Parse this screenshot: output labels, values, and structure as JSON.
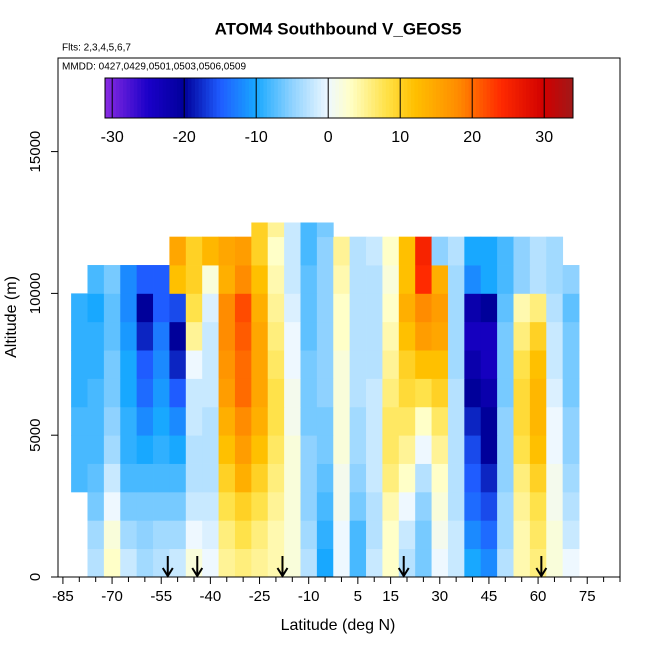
{
  "chart_data": {
    "type": "heatmap",
    "title": "ATOM4 Southbound V_GEOS5",
    "subtitle": "Flts: 2,3,4,5,6,7",
    "annotation": "MMDD: 0427,0429,0501,0503,0506,0509",
    "xlabel": "Latitude (deg N)",
    "ylabel": "Altitude (m)",
    "xlim": [
      -86.5,
      85
    ],
    "ylim": [
      0,
      18300
    ],
    "xticks": [
      -85,
      -70,
      -55,
      -40,
      -25,
      -10,
      5,
      15,
      30,
      45,
      60,
      75
    ],
    "xminorticks": [
      -80,
      -75,
      -65,
      -60,
      -50,
      -45,
      -35,
      -30,
      -20,
      -15,
      -5,
      0,
      10,
      20,
      25,
      35,
      40,
      50,
      55,
      65,
      70,
      80,
      85
    ],
    "yticks": [
      0,
      5000,
      10000,
      15000
    ],
    "xbins": [
      -82.5,
      -77.5,
      -72.5,
      -67.5,
      -62.5,
      -57.5,
      -52.5,
      -47.5,
      -42.5,
      -37.5,
      -32.5,
      -27.5,
      -22.5,
      -17.5,
      -12.5,
      -7.5,
      -2.5,
      2.5,
      7.5,
      12.5,
      17.5,
      22.5,
      27.5,
      32.5,
      37.5,
      42.5,
      47.5,
      52.5,
      57.5,
      62.5,
      67.5,
      72.5
    ],
    "ybins": [
      0,
      1000,
      2000,
      3000,
      4000,
      5000,
      6000,
      7000,
      8000,
      9000,
      10000,
      11000,
      12000,
      12500
    ],
    "values": [
      [
        null,
        -3,
        3,
        -2,
        -4,
        -3,
        -2,
        2,
        0,
        5,
        6,
        5,
        4,
        2,
        -3,
        -10,
        0,
        -8,
        -2,
        3,
        -3,
        -6,
        0,
        -2,
        -10,
        -12,
        -3,
        4,
        6,
        2,
        0
      ],
      [
        null,
        -4,
        2,
        -4,
        -5,
        -4,
        -4,
        0,
        -1,
        6,
        8,
        6,
        4,
        2,
        -4,
        -9,
        0,
        -8,
        -3,
        3,
        -2,
        -6,
        1,
        -2,
        -12,
        -14,
        -4,
        4,
        7,
        2,
        -2
      ],
      [
        null,
        -6,
        0,
        -6,
        -6,
        -6,
        -6,
        -2,
        -2,
        8,
        10,
        8,
        5,
        2,
        -5,
        -8,
        1,
        -6,
        -3,
        4,
        0,
        -5,
        2,
        -3,
        -14,
        -16,
        -4,
        5,
        8,
        1,
        -3
      ],
      [
        -8,
        -7,
        -2,
        -8,
        -8,
        -8,
        -8,
        -3,
        -3,
        10,
        14,
        10,
        6,
        2,
        -5,
        -7,
        1,
        -5,
        -2,
        6,
        3,
        -3,
        3,
        -3,
        -15,
        -18,
        -5,
        6,
        10,
        1,
        -4
      ],
      [
        -8,
        -8,
        -4,
        -9,
        -10,
        -9,
        -10,
        -3,
        -3,
        12,
        16,
        12,
        7,
        2,
        -5,
        -6,
        2,
        -4,
        -2,
        7,
        5,
        0,
        5,
        -3,
        -16,
        -20,
        -5,
        8,
        12,
        0,
        -5
      ],
      [
        -8,
        -8,
        -5,
        -9,
        -12,
        -10,
        -12,
        -2,
        -3,
        14,
        18,
        14,
        8,
        1,
        -6,
        -6,
        2,
        -4,
        -2,
        7,
        7,
        3,
        7,
        -3,
        -18,
        -20,
        -5,
        9,
        13,
        0,
        -5
      ],
      [
        -9,
        -8,
        -6,
        -10,
        -14,
        -11,
        -15,
        -2,
        -2,
        16,
        20,
        15,
        8,
        1,
        -6,
        -5,
        2,
        -3,
        -2,
        6,
        9,
        8,
        10,
        -3,
        -20,
        -22,
        -6,
        9,
        13,
        -1,
        -6
      ],
      [
        -9,
        -9,
        -6,
        -10,
        -15,
        -12,
        -18,
        0,
        -2,
        17,
        20,
        15,
        7,
        0,
        -6,
        -5,
        2,
        -3,
        -3,
        5,
        10,
        12,
        12,
        -4,
        -22,
        -24,
        -6,
        8,
        12,
        -2,
        -6
      ],
      [
        -9,
        -9,
        -7,
        -11,
        -18,
        -13,
        -20,
        5,
        -2,
        18,
        21,
        15,
        6,
        0,
        -7,
        -5,
        3,
        -3,
        -3,
        4,
        12,
        16,
        15,
        -4,
        -24,
        -24,
        -6,
        6,
        10,
        -2,
        -6
      ],
      [
        -9,
        -10,
        -7,
        -12,
        -20,
        -15,
        -16,
        8,
        -1,
        18,
        22,
        14,
        5,
        -1,
        -7,
        -5,
        3,
        -3,
        -3,
        3,
        14,
        18,
        16,
        -4,
        -22,
        -20,
        -7,
        4,
        6,
        -3,
        -7
      ],
      [
        null,
        -8,
        -6,
        -12,
        -15,
        -15,
        12,
        10,
        2,
        14,
        18,
        12,
        4,
        -2,
        -7,
        -5,
        4,
        -3,
        -3,
        2,
        12,
        24,
        14,
        -4,
        -12,
        -10,
        -8,
        -5,
        -3,
        -4,
        -5
      ],
      [
        null,
        null,
        null,
        null,
        null,
        null,
        15,
        10,
        13,
        15,
        16,
        10,
        3,
        -2,
        -8,
        -5,
        5,
        -3,
        -2,
        3,
        12,
        25,
        -5,
        -3,
        -10,
        -10,
        -8,
        -5,
        -3,
        -4,
        null
      ],
      [
        null,
        null,
        null,
        null,
        null,
        null,
        null,
        null,
        null,
        null,
        null,
        10,
        5,
        -2,
        -8,
        -6,
        null,
        null,
        null,
        null,
        null,
        null,
        null,
        null,
        null,
        null,
        null,
        null,
        null,
        null,
        null
      ]
    ],
    "arrows": [
      -53,
      -44,
      -18,
      19,
      61
    ],
    "colorbar_lim": [
      -31,
      34
    ],
    "colorbar_ticks": [
      -30,
      -20,
      -10,
      0,
      10,
      20,
      30
    ],
    "colorscale": [
      [
        -31,
        "#8a2be2"
      ],
      [
        -25,
        "#1a00c8"
      ],
      [
        -20,
        "#00009a"
      ],
      [
        -15,
        "#1f5cff"
      ],
      [
        -10,
        "#18a8ff"
      ],
      [
        -5,
        "#8fd2ff"
      ],
      [
        0,
        "#eef8ff"
      ],
      [
        3,
        "#ffffc8"
      ],
      [
        8,
        "#ffe24a"
      ],
      [
        12,
        "#ffc000"
      ],
      [
        18,
        "#ff8c00"
      ],
      [
        24,
        "#ff2a00"
      ],
      [
        30,
        "#d00000"
      ],
      [
        34,
        "#a01818"
      ]
    ]
  }
}
